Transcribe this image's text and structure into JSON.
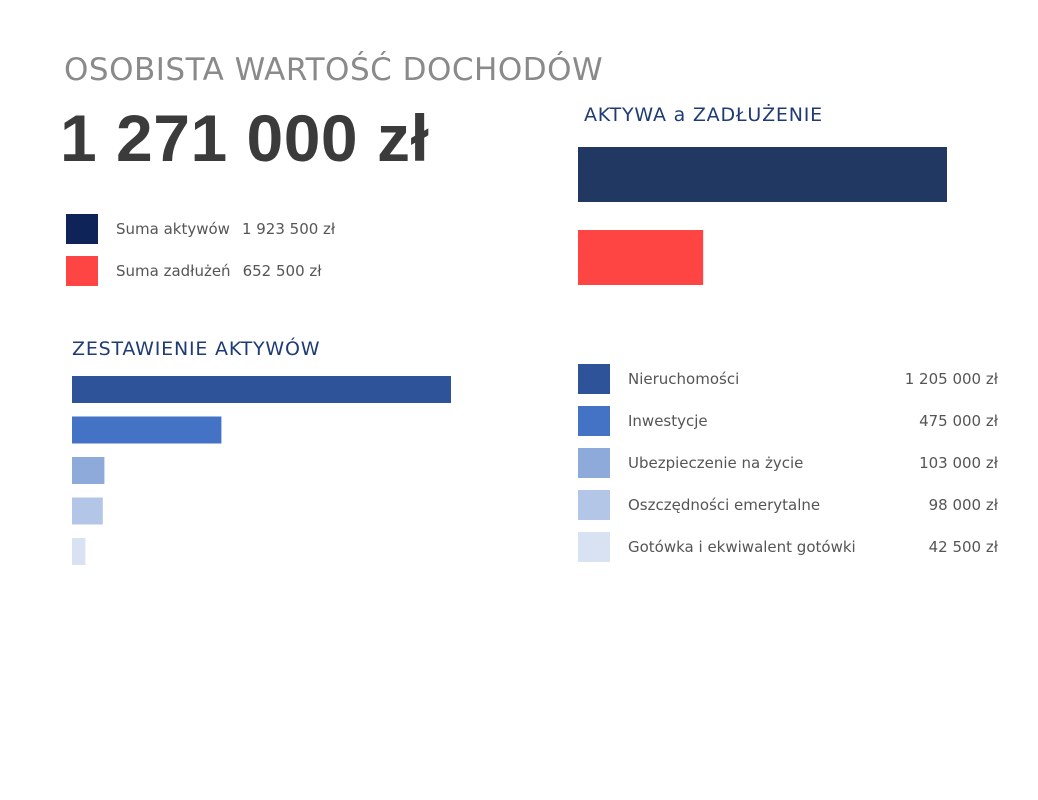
{
  "header": {
    "title": "OSOBISTA WARTOŚĆ DOCHODÓW",
    "net_value": "1 271 000 zł"
  },
  "summary": [
    {
      "label": "Suma aktywów",
      "value": "1 923 500 zł",
      "color": "#0e2358"
    },
    {
      "label": "Suma zadłużeń",
      "value": "652 500 zł",
      "color": "#ff4444"
    }
  ],
  "chart_data": [
    {
      "type": "bar",
      "orientation": "horizontal",
      "title": "AKTYWA a ZADŁUŻENIE",
      "categories": [
        "Suma aktywów",
        "Suma zadłużeń"
      ],
      "values": [
        1923500,
        652500
      ],
      "colors": [
        "#213862",
        "#ff4444"
      ],
      "xlim": [
        0,
        1923500
      ],
      "grid": false,
      "legend": "none"
    },
    {
      "type": "bar",
      "orientation": "horizontal",
      "title": "ZESTAWIENIE AKTYWÓW",
      "categories": [
        "Nieruchomości",
        "Inwestycje",
        "Ubezpieczenie na życie",
        "Oszczędności emerytalne",
        "Gotówka i ekwiwalent gotówki"
      ],
      "values": [
        1205000,
        475000,
        103000,
        98000,
        42500
      ],
      "value_labels": [
        "1 205 000 zł",
        "475 000 zł",
        "103 000 zł",
        "98 000 zł",
        "42 500 zł"
      ],
      "colors": [
        "#2e5399",
        "#4472c4",
        "#8eaadb",
        "#b4c6e7",
        "#d9e2f3"
      ],
      "xlim": [
        0,
        1205000
      ],
      "grid": false,
      "legend": "right"
    }
  ]
}
